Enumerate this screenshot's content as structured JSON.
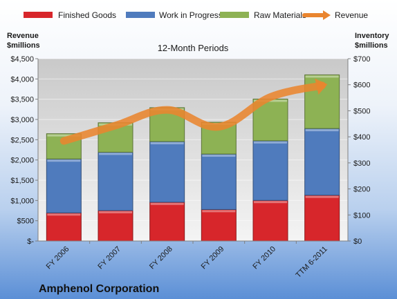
{
  "chart_data": {
    "type": "bar",
    "stacked": true,
    "subtitle": "12-Month Periods",
    "company": "Amphenol Corporation",
    "categories": [
      "FY 2006",
      "FY 2007",
      "FY 2008",
      "FY 2009",
      "FY 2010",
      "TTM 6-2011"
    ],
    "left_axis": {
      "title_line1": "Revenue",
      "title_line2": "$millions",
      "ylim": [
        0,
        4500
      ],
      "ticks": [
        0,
        500,
        1000,
        1500,
        2000,
        2500,
        3000,
        3500,
        4000,
        4500
      ],
      "tick_labels": [
        "$-",
        "$500",
        "$1,000",
        "$1,500",
        "$2,000",
        "$2,500",
        "$3,000",
        "$3,500",
        "$4,000",
        "$4,500"
      ]
    },
    "right_axis": {
      "title_line1": "Inventory",
      "title_line2": "$millions",
      "ylim": [
        0,
        700
      ],
      "ticks": [
        0,
        100,
        200,
        300,
        400,
        500,
        600,
        700
      ],
      "tick_labels": [
        "$0",
        "$100",
        "$200",
        "$300",
        "$400",
        "$500",
        "$600",
        "$700"
      ]
    },
    "series": [
      {
        "name": "Finished Goods",
        "kind": "bar",
        "axis": "right",
        "color": "#d7262b",
        "values": [
          108,
          117,
          149,
          121,
          156,
          176
        ]
      },
      {
        "name": "Work in Progress",
        "kind": "bar",
        "axis": "right",
        "color": "#4f7bbd",
        "values": [
          207,
          224,
          233,
          213,
          229,
          256
        ]
      },
      {
        "name": "Raw Materials",
        "kind": "bar",
        "axis": "right",
        "color": "#8db254",
        "values": [
          97,
          113,
          130,
          122,
          160,
          206
        ]
      },
      {
        "name": "Revenue",
        "kind": "line",
        "axis": "left",
        "color": "#e9852f",
        "values": [
          2470,
          2851,
          3236,
          2820,
          3554,
          3840
        ]
      }
    ],
    "legend_position": "top",
    "grid": true
  }
}
